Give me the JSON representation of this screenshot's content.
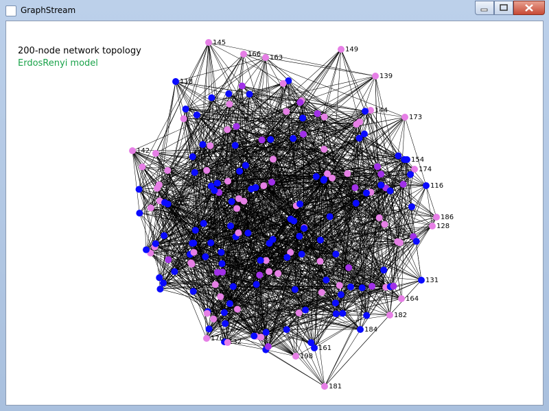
{
  "window": {
    "title": "GraphStream"
  },
  "overlay": {
    "heading": "200-node network topology",
    "model": "ErdosRenyi model",
    "model_color": "#1aa34a"
  },
  "nodes": [
    {
      "label": "145",
      "color": "#e67fe6"
    },
    {
      "label": "166",
      "color": "#e67fe6"
    },
    {
      "label": "163",
      "color": "#e67fe6"
    },
    {
      "label": "149",
      "color": "#e67fe6"
    },
    {
      "label": "139",
      "color": "#e67fe6"
    },
    {
      "label": "144",
      "color": "#e67fe6"
    },
    {
      "label": "173",
      "color": "#e67fe6"
    },
    {
      "label": "154",
      "color": "#0a0aff"
    },
    {
      "label": "174",
      "color": "#e67fe6"
    },
    {
      "label": "116",
      "color": "#0a0aff"
    },
    {
      "label": "186",
      "color": "#e67fe6"
    },
    {
      "label": "128",
      "color": "#e67fe6"
    },
    {
      "label": "131",
      "color": "#0a0aff"
    },
    {
      "label": "164",
      "color": "#e67fe6"
    },
    {
      "label": "182",
      "color": "#e67fe6"
    },
    {
      "label": "184",
      "color": "#0a0aff"
    },
    {
      "label": "161",
      "color": "#0a0aff"
    },
    {
      "label": "198",
      "color": "#e67fe6"
    },
    {
      "label": "181",
      "color": "#e67fe6"
    },
    {
      "label": "132",
      "color": "#0a0aff"
    },
    {
      "label": "176",
      "color": "#e67fe6"
    },
    {
      "label": "125",
      "color": "#e67fe6"
    },
    {
      "label": "142",
      "color": "#e67fe6"
    },
    {
      "label": "118",
      "color": "#0a0aff"
    }
  ],
  "palette": [
    "#0a0aff",
    "#0a0aff",
    "#0a0aff",
    "#a030e8",
    "#e67fe6",
    "#e67fe6"
  ]
}
